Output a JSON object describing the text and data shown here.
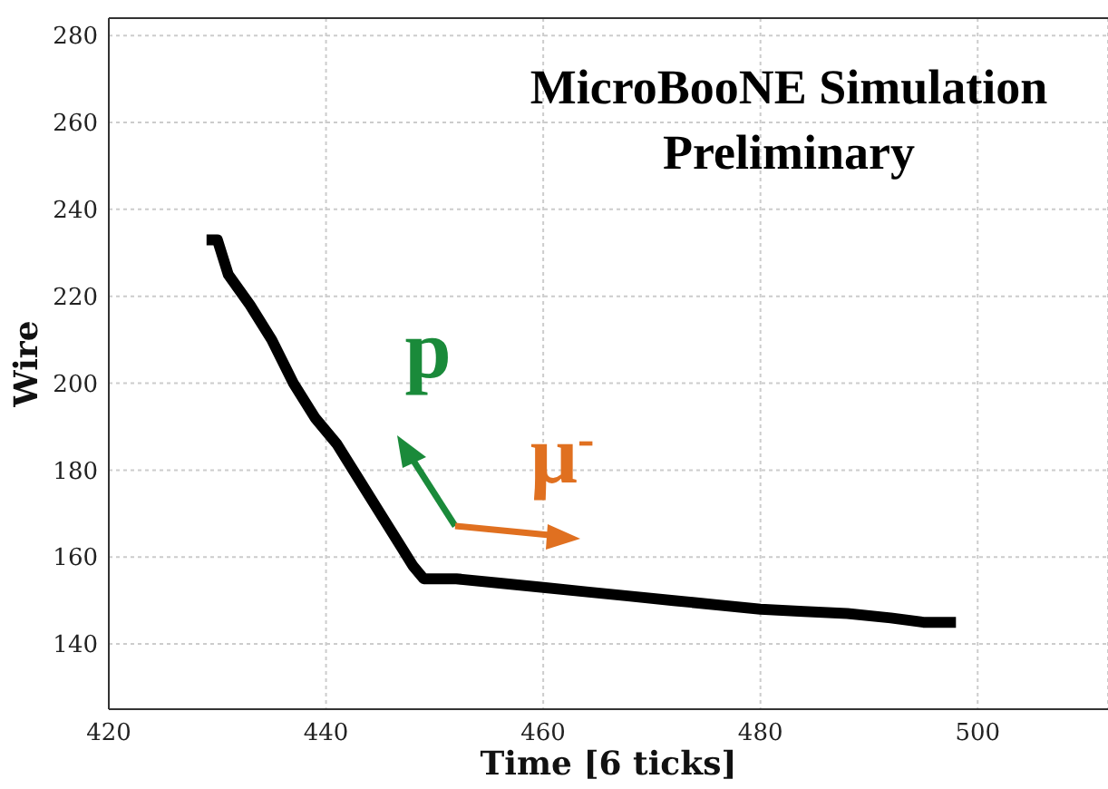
{
  "chart_data": {
    "type": "line",
    "xlabel": "Time [6 ticks]",
    "ylabel": "Wire",
    "annotations": [
      "MicroBooNE Simulation",
      "Preliminary",
      "p",
      "μ$^{-}$"
    ],
    "series": [
      {
        "color": "#000000",
        "x": [
          429,
          430,
          431,
          433,
          435,
          437,
          439,
          441,
          443,
          445,
          447,
          448,
          449,
          452,
          456,
          460,
          464,
          468,
          472,
          476,
          480,
          484,
          488,
          492,
          495,
          498
        ],
        "values": [
          233,
          233,
          225,
          218,
          210,
          200,
          192,
          186,
          178,
          170,
          162,
          158,
          155,
          155,
          154,
          153,
          152,
          151,
          150,
          149,
          148,
          147.5,
          147,
          146,
          145,
          145
        ]
      }
    ],
    "xlim": [
      420,
      512
    ],
    "ylim": [
      125,
      284
    ],
    "xticks": [
      420,
      440,
      460,
      480,
      500
    ],
    "yticks": [
      140,
      160,
      180,
      200,
      220,
      240,
      260,
      280
    ],
    "grid": true,
    "marker": "none",
    "line_style": "solid"
  }
}
